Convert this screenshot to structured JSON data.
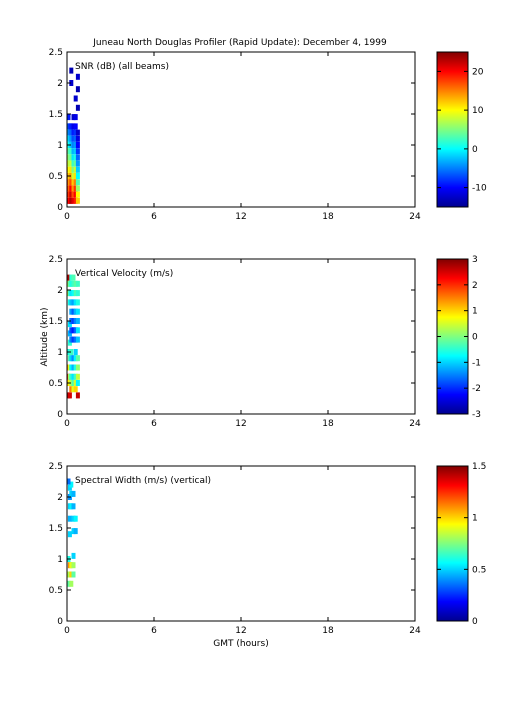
{
  "figure": {
    "title": "Juneau North Douglas Profiler (Rapid Update):  December  4, 1999",
    "ylabel": "Altitude (km)",
    "xlabel": "GMT (hours)"
  },
  "chart_data": [
    {
      "type": "heatmap",
      "label": "SNR (dB) (all beams)",
      "xlim": [
        0,
        24
      ],
      "ylim": [
        0,
        2.5
      ],
      "xticks": [
        0,
        6,
        12,
        18,
        24
      ],
      "yticks": [
        0,
        0.5,
        1,
        1.5,
        2,
        2.5
      ],
      "colorbar": {
        "min": -15,
        "max": 25,
        "ticks": [
          -10,
          0,
          10,
          20
        ]
      },
      "points": [
        [
          0.1,
          0.1,
          22
        ],
        [
          0.2,
          0.1,
          20
        ],
        [
          0.3,
          0.1,
          23
        ],
        [
          0.45,
          0.1,
          21
        ],
        [
          0.6,
          0.1,
          19
        ],
        [
          0.75,
          0.1,
          12
        ],
        [
          0.1,
          0.2,
          21
        ],
        [
          0.2,
          0.2,
          18
        ],
        [
          0.3,
          0.2,
          22
        ],
        [
          0.45,
          0.2,
          17
        ],
        [
          0.6,
          0.2,
          20
        ],
        [
          0.75,
          0.2,
          10
        ],
        [
          0.1,
          0.3,
          19
        ],
        [
          0.2,
          0.3,
          16
        ],
        [
          0.3,
          0.3,
          20
        ],
        [
          0.45,
          0.3,
          14
        ],
        [
          0.6,
          0.3,
          18
        ],
        [
          0.75,
          0.3,
          6
        ],
        [
          0.1,
          0.4,
          18
        ],
        [
          0.2,
          0.4,
          14
        ],
        [
          0.3,
          0.4,
          17
        ],
        [
          0.45,
          0.4,
          12
        ],
        [
          0.6,
          0.4,
          15
        ],
        [
          0.75,
          0.4,
          3
        ],
        [
          0.1,
          0.5,
          15
        ],
        [
          0.2,
          0.5,
          12
        ],
        [
          0.3,
          0.5,
          14
        ],
        [
          0.45,
          0.5,
          8
        ],
        [
          0.6,
          0.5,
          11
        ],
        [
          0.75,
          0.5,
          0
        ],
        [
          0.1,
          0.6,
          12
        ],
        [
          0.2,
          0.6,
          10
        ],
        [
          0.3,
          0.6,
          11
        ],
        [
          0.45,
          0.6,
          5
        ],
        [
          0.6,
          0.6,
          8
        ],
        [
          0.75,
          0.6,
          -2
        ],
        [
          0.1,
          0.7,
          10
        ],
        [
          0.2,
          0.7,
          7
        ],
        [
          0.3,
          0.7,
          8
        ],
        [
          0.45,
          0.7,
          2
        ],
        [
          0.6,
          0.7,
          4
        ],
        [
          0.75,
          0.7,
          -4
        ],
        [
          0.1,
          0.8,
          7
        ],
        [
          0.2,
          0.8,
          5
        ],
        [
          0.3,
          0.8,
          4
        ],
        [
          0.45,
          0.8,
          -1
        ],
        [
          0.6,
          0.8,
          1
        ],
        [
          0.75,
          0.8,
          -6
        ],
        [
          0.1,
          0.9,
          5
        ],
        [
          0.2,
          0.9,
          3
        ],
        [
          0.3,
          0.9,
          2
        ],
        [
          0.45,
          0.9,
          -3
        ],
        [
          0.6,
          0.9,
          -2
        ],
        [
          0.75,
          0.9,
          -8
        ],
        [
          0.1,
          1.0,
          3
        ],
        [
          0.2,
          1.0,
          0
        ],
        [
          0.3,
          1.0,
          -2
        ],
        [
          0.45,
          1.0,
          -5
        ],
        [
          0.6,
          1.0,
          -4
        ],
        [
          0.75,
          1.0,
          -10
        ],
        [
          0.1,
          1.1,
          0
        ],
        [
          0.2,
          1.1,
          -2
        ],
        [
          0.3,
          1.1,
          -4
        ],
        [
          0.45,
          1.1,
          -7
        ],
        [
          0.6,
          1.1,
          -6
        ],
        [
          0.75,
          1.1,
          -11
        ],
        [
          0.1,
          1.2,
          -3
        ],
        [
          0.2,
          1.2,
          -5
        ],
        [
          0.3,
          1.2,
          -6
        ],
        [
          0.45,
          1.2,
          -9
        ],
        [
          0.6,
          1.2,
          -8
        ],
        [
          0.75,
          1.2,
          -12
        ],
        [
          0.1,
          1.3,
          -6
        ],
        [
          0.2,
          1.3,
          -8
        ],
        [
          0.3,
          1.3,
          -9
        ],
        [
          0.45,
          1.3,
          -11
        ],
        [
          0.6,
          1.3,
          -10
        ],
        [
          0.1,
          1.45,
          -9
        ],
        [
          0.45,
          1.45,
          -12
        ],
        [
          0.6,
          1.45,
          -11
        ],
        [
          0.75,
          1.6,
          -13
        ],
        [
          0.6,
          1.75,
          -12
        ],
        [
          0.75,
          1.9,
          -13
        ],
        [
          0.3,
          2.0,
          -12
        ],
        [
          0.75,
          2.1,
          -12
        ],
        [
          0.3,
          2.2,
          -13
        ]
      ]
    },
    {
      "type": "heatmap",
      "label": "Vertical Velocity (m/s)",
      "xlim": [
        0,
        24
      ],
      "ylim": [
        0,
        2.5
      ],
      "xticks": [
        0,
        6,
        12,
        18,
        24
      ],
      "yticks": [
        0,
        0.5,
        1,
        1.5,
        2,
        2.5
      ],
      "colorbar": {
        "min": -3,
        "max": 3,
        "ticks": [
          -3,
          -2,
          -1,
          0,
          1,
          2,
          3
        ]
      },
      "points": [
        [
          0.1,
          0.3,
          2.8
        ],
        [
          0.2,
          0.3,
          2.5
        ],
        [
          0.3,
          0.4,
          1.5
        ],
        [
          0.45,
          0.4,
          0.6
        ],
        [
          0.6,
          0.4,
          1.0
        ],
        [
          0.75,
          0.3,
          2.6
        ],
        [
          0.1,
          0.5,
          1.2
        ],
        [
          0.2,
          0.5,
          0.8
        ],
        [
          0.3,
          0.5,
          0.3
        ],
        [
          0.45,
          0.5,
          -0.3
        ],
        [
          0.6,
          0.5,
          0.5
        ],
        [
          0.75,
          0.5,
          -0.8
        ],
        [
          0.1,
          0.6,
          2.2
        ],
        [
          0.2,
          0.6,
          0.2
        ],
        [
          0.3,
          0.6,
          -0.5
        ],
        [
          0.45,
          0.6,
          -0.9
        ],
        [
          0.6,
          0.6,
          -0.4
        ],
        [
          0.75,
          0.6,
          0.4
        ],
        [
          0.1,
          0.75,
          1.5
        ],
        [
          0.2,
          0.75,
          0.6
        ],
        [
          0.3,
          0.75,
          -0.8
        ],
        [
          0.45,
          0.75,
          -1.2
        ],
        [
          0.6,
          0.75,
          -0.6
        ],
        [
          0.75,
          0.75,
          0.1
        ],
        [
          0.2,
          0.9,
          -0.3
        ],
        [
          0.3,
          0.9,
          -1.0
        ],
        [
          0.45,
          0.9,
          -1.4
        ],
        [
          0.6,
          0.9,
          -0.8
        ],
        [
          0.75,
          0.9,
          -0.2
        ],
        [
          0.1,
          1.0,
          -0.6
        ],
        [
          0.3,
          1.0,
          -0.4
        ],
        [
          0.6,
          1.0,
          -1.0
        ],
        [
          0.2,
          1.15,
          -0.5
        ],
        [
          0.3,
          1.2,
          -1.5
        ],
        [
          0.45,
          1.2,
          -1.9
        ],
        [
          0.6,
          1.2,
          -1.6
        ],
        [
          0.75,
          1.2,
          -1.1
        ],
        [
          0.2,
          1.3,
          -1.2
        ],
        [
          0.3,
          1.35,
          -1.8
        ],
        [
          0.45,
          1.35,
          -2.1
        ],
        [
          0.6,
          1.35,
          -1.7
        ],
        [
          0.75,
          1.35,
          -0.9
        ],
        [
          0.2,
          1.45,
          -0.9
        ],
        [
          0.3,
          1.5,
          -1.6
        ],
        [
          0.45,
          1.5,
          -1.9
        ],
        [
          0.6,
          1.5,
          -1.5
        ],
        [
          0.75,
          1.5,
          -1.2
        ],
        [
          0.3,
          1.65,
          -1.3
        ],
        [
          0.45,
          1.65,
          -1.7
        ],
        [
          0.6,
          1.65,
          -1.2
        ],
        [
          0.75,
          1.65,
          -0.9
        ],
        [
          0.2,
          1.8,
          -0.6
        ],
        [
          0.3,
          1.8,
          -1.1
        ],
        [
          0.45,
          1.8,
          -1.3
        ],
        [
          0.6,
          1.8,
          -0.9
        ],
        [
          0.75,
          1.8,
          -0.6
        ],
        [
          0.1,
          1.95,
          0.5
        ],
        [
          0.2,
          1.95,
          -0.4
        ],
        [
          0.3,
          1.95,
          -0.9
        ],
        [
          0.45,
          1.95,
          -0.7
        ],
        [
          0.6,
          1.95,
          -0.3
        ],
        [
          0.75,
          1.95,
          -0.5
        ],
        [
          0.1,
          2.1,
          0.3
        ],
        [
          0.2,
          2.1,
          -0.2
        ],
        [
          0.3,
          2.1,
          -0.6
        ],
        [
          0.45,
          2.1,
          -0.4
        ],
        [
          0.6,
          2.1,
          -0.2
        ],
        [
          0.75,
          2.1,
          -0.4
        ],
        [
          0.1,
          2.2,
          2.7
        ],
        [
          0.3,
          2.2,
          -0.5
        ],
        [
          0.45,
          2.2,
          -0.3
        ]
      ]
    },
    {
      "type": "heatmap",
      "label": "Spectral Width (m/s) (vertical)",
      "xlim": [
        0,
        24
      ],
      "ylim": [
        0,
        2.5
      ],
      "xticks": [
        0,
        6,
        12,
        18,
        24
      ],
      "yticks": [
        0,
        0.5,
        1,
        1.5,
        2,
        2.5
      ],
      "colorbar": {
        "min": 0,
        "max": 1.5,
        "ticks": [
          0,
          0.5,
          1,
          1.5
        ]
      },
      "points": [
        [
          0.1,
          0.6,
          0.7
        ],
        [
          0.3,
          0.6,
          0.8
        ],
        [
          0.1,
          0.75,
          0.9
        ],
        [
          0.2,
          0.75,
          0.8
        ],
        [
          0.3,
          0.75,
          1.0
        ],
        [
          0.45,
          0.75,
          0.7
        ],
        [
          0.2,
          0.9,
          1.1
        ],
        [
          0.3,
          0.9,
          0.9
        ],
        [
          0.45,
          0.9,
          0.8
        ],
        [
          0.1,
          1.0,
          0.6
        ],
        [
          0.45,
          1.05,
          0.5
        ],
        [
          0.2,
          1.4,
          0.5
        ],
        [
          0.45,
          1.45,
          0.5
        ],
        [
          0.6,
          1.45,
          0.45
        ],
        [
          0.2,
          1.65,
          0.45
        ],
        [
          0.45,
          1.65,
          0.5
        ],
        [
          0.6,
          1.65,
          0.55
        ],
        [
          0.2,
          1.85,
          0.5
        ],
        [
          0.3,
          1.85,
          0.55
        ],
        [
          0.45,
          1.85,
          0.45
        ],
        [
          0.2,
          2.0,
          0.4
        ],
        [
          0.3,
          2.05,
          0.5
        ],
        [
          0.45,
          2.05,
          0.45
        ],
        [
          0.2,
          2.15,
          0.5
        ],
        [
          0.3,
          2.2,
          0.55
        ],
        [
          0.1,
          2.25,
          0.35
        ]
      ]
    }
  ]
}
